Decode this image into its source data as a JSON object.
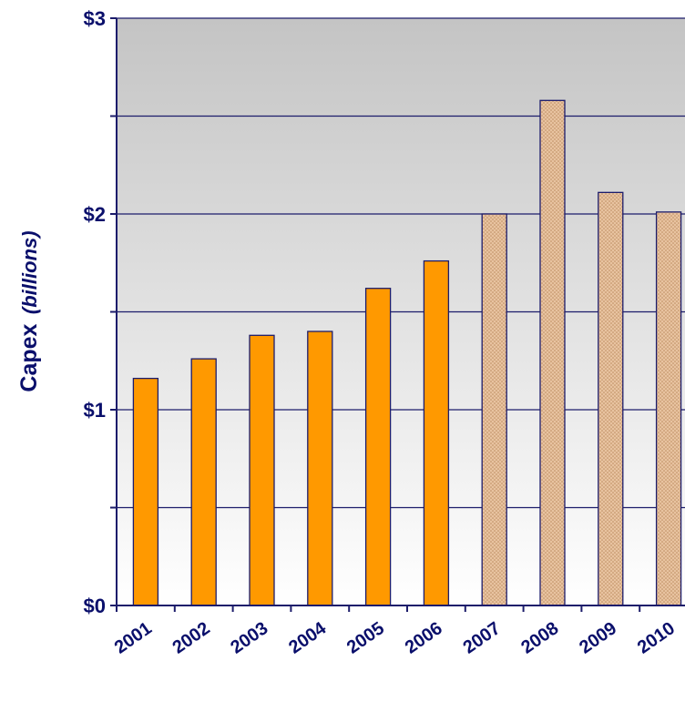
{
  "chart_data": {
    "type": "bar",
    "categories": [
      "2001",
      "2002",
      "2003",
      "2004",
      "2005",
      "2006",
      "2007",
      "2008",
      "2009",
      "2010"
    ],
    "values": [
      1.16,
      1.26,
      1.38,
      1.4,
      1.62,
      1.76,
      2.0,
      2.58,
      2.11,
      2.01
    ],
    "bar_styles": [
      "actual",
      "actual",
      "actual",
      "actual",
      "actual",
      "actual",
      "projected",
      "projected",
      "projected",
      "projected"
    ],
    "ylabel_main": "Capex",
    "ylabel_unit": "(billions)",
    "ylim": [
      0,
      3
    ],
    "y_ticks": [
      0,
      1,
      2,
      3
    ],
    "y_tick_labels": [
      "$0",
      "$1",
      "$2",
      "$3"
    ],
    "grid": true,
    "grid_step": 0.5,
    "colors": {
      "actual_fill": "#ff9900",
      "projected_fill": "#e8c3a0",
      "projected_dots": "#b8875a",
      "bar_stroke": "#1c1c6b",
      "axis": "#1c1c6b",
      "grid": "#1c1c6b",
      "text": "#0a0f6b",
      "bg_top": "#c4c4c4",
      "bg_bottom": "#ffffff"
    }
  }
}
